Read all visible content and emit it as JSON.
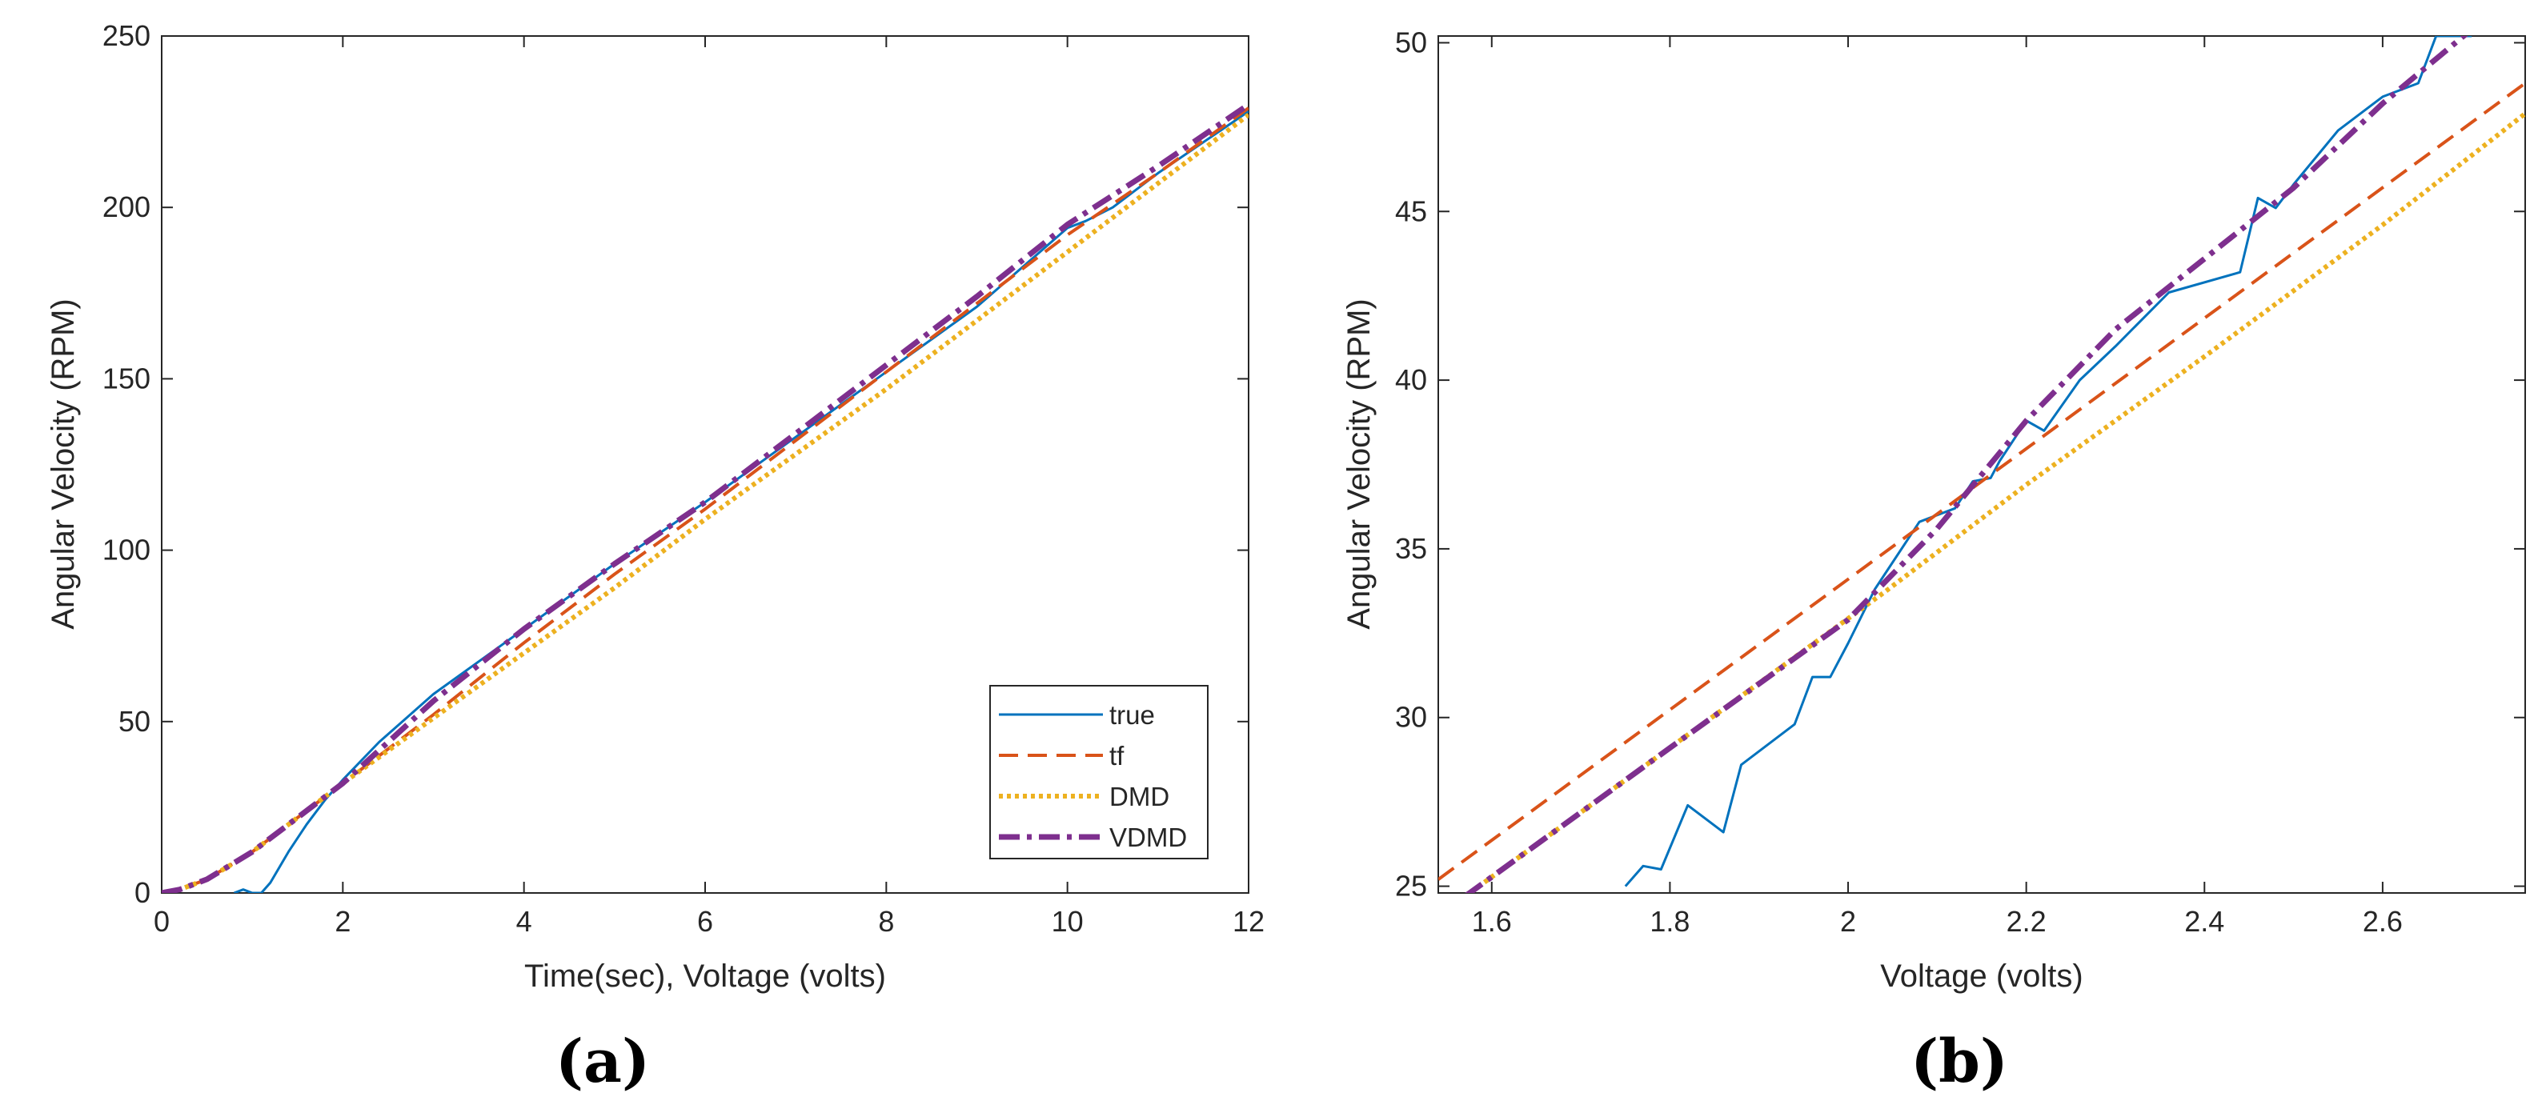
{
  "chart_data": [
    {
      "panel": "(a)",
      "type": "line",
      "xlabel": "Time(sec), Voltage (volts)",
      "ylabel": "Angular Velocity (RPM)",
      "xlim": [
        0,
        12
      ],
      "ylim": [
        0,
        250
      ],
      "xticks": [
        "0",
        "2",
        "4",
        "6",
        "8",
        "10",
        "12"
      ],
      "yticks": [
        "0",
        "50",
        "100",
        "150",
        "200",
        "250"
      ],
      "legend_position": "bottom-right",
      "legend": [
        "true",
        "tf",
        "DMD",
        "VDMD"
      ],
      "series": [
        {
          "name": "true",
          "color": "#0072BD",
          "style": "solid",
          "x": [
            0.8,
            0.9,
            1.0,
            1.1,
            1.2,
            1.4,
            1.6,
            1.8,
            2.0,
            2.4,
            3.0,
            4.0,
            5.0,
            6.0,
            7.0,
            8.0,
            9.0,
            10.0,
            10.2,
            10.5,
            11.0,
            11.5,
            12.0
          ],
          "y": [
            0,
            1,
            0,
            0,
            3,
            12,
            20,
            27,
            33,
            44,
            58,
            77,
            96,
            114,
            133,
            152,
            171,
            194,
            196,
            200,
            210,
            219,
            228
          ]
        },
        {
          "name": "tf",
          "color": "#D95319",
          "style": "dashed",
          "x": [
            0,
            0.2,
            0.5,
            1.0,
            1.5,
            2.0,
            3.0,
            4.0,
            5.0,
            6.0,
            7.0,
            8.0,
            9.0,
            10.0,
            11.0,
            12.0
          ],
          "y": [
            0,
            1,
            4,
            12,
            22,
            32,
            52,
            73,
            93,
            112,
            132,
            152,
            172,
            192,
            210,
            229
          ]
        },
        {
          "name": "DMD",
          "color": "#EDB120",
          "style": "dotted",
          "x": [
            0,
            0.2,
            0.5,
            1.0,
            1.5,
            2.0,
            3.0,
            4.0,
            5.0,
            6.0,
            7.0,
            8.0,
            9.0,
            10.0,
            11.0,
            12.0
          ],
          "y": [
            0,
            1,
            4,
            12,
            22,
            32,
            51,
            70,
            89,
            109,
            128,
            147,
            167,
            187,
            207,
            227
          ]
        },
        {
          "name": "VDMD",
          "color": "#7E2F8E",
          "style": "dashdot",
          "x": [
            0,
            0.2,
            0.5,
            1.0,
            1.5,
            2.0,
            3.0,
            4.0,
            5.0,
            6.0,
            7.0,
            8.0,
            9.0,
            10.0,
            11.0,
            12.0
          ],
          "y": [
            0,
            1,
            4,
            12,
            22,
            32,
            56,
            77,
            96,
            114,
            134,
            154,
            174,
            195,
            212,
            230
          ]
        }
      ]
    },
    {
      "panel": "(b)",
      "type": "line",
      "xlabel": "Voltage (volts)",
      "ylabel": "Angular Velocity (RPM)",
      "xlim": [
        1.54,
        2.76
      ],
      "ylim": [
        24.8,
        50.2
      ],
      "xticks": [
        "1.6",
        "1.8",
        "2",
        "2.2",
        "2.4",
        "2.6"
      ],
      "yticks": [
        "25",
        "30",
        "35",
        "40",
        "45",
        "50"
      ],
      "series": [
        {
          "name": "true",
          "color": "#0072BD",
          "style": "solid",
          "x": [
            1.75,
            1.77,
            1.79,
            1.82,
            1.86,
            1.88,
            1.94,
            1.96,
            1.98,
            2.0,
            2.03,
            2.08,
            2.12,
            2.14,
            2.16,
            2.17,
            2.2,
            2.22,
            2.26,
            2.3,
            2.36,
            2.44,
            2.46,
            2.48,
            2.5,
            2.55,
            2.6,
            2.64,
            2.66,
            2.68,
            2.7
          ],
          "y": [
            25.0,
            25.6,
            25.5,
            27.4,
            26.6,
            28.6,
            29.8,
            31.2,
            31.2,
            32.2,
            33.8,
            35.8,
            36.2,
            37.0,
            37.1,
            37.6,
            38.8,
            38.5,
            40.0,
            41.0,
            42.6,
            43.2,
            45.4,
            45.1,
            45.8,
            47.4,
            48.4,
            48.8,
            50.2,
            50.2,
            50.2
          ]
        },
        {
          "name": "tf",
          "color": "#D95319",
          "style": "dashed",
          "x": [
            1.54,
            2.76
          ],
          "y": [
            25.2,
            48.8
          ]
        },
        {
          "name": "DMD",
          "color": "#EDB120",
          "style": "dotted",
          "x": [
            1.57,
            2.04,
            2.2,
            2.4,
            2.6,
            2.76
          ],
          "y": [
            24.7,
            33.7,
            36.9,
            40.7,
            44.6,
            47.9
          ]
        },
        {
          "name": "VDMD",
          "color": "#7E2F8E",
          "style": "dashdot",
          "x": [
            1.57,
            1.8,
            2.0,
            2.1,
            2.2,
            2.3,
            2.4,
            2.5,
            2.6,
            2.7
          ],
          "y": [
            24.7,
            29.1,
            32.9,
            35.6,
            38.8,
            41.5,
            43.6,
            45.7,
            48.2,
            50.4
          ]
        }
      ]
    }
  ]
}
